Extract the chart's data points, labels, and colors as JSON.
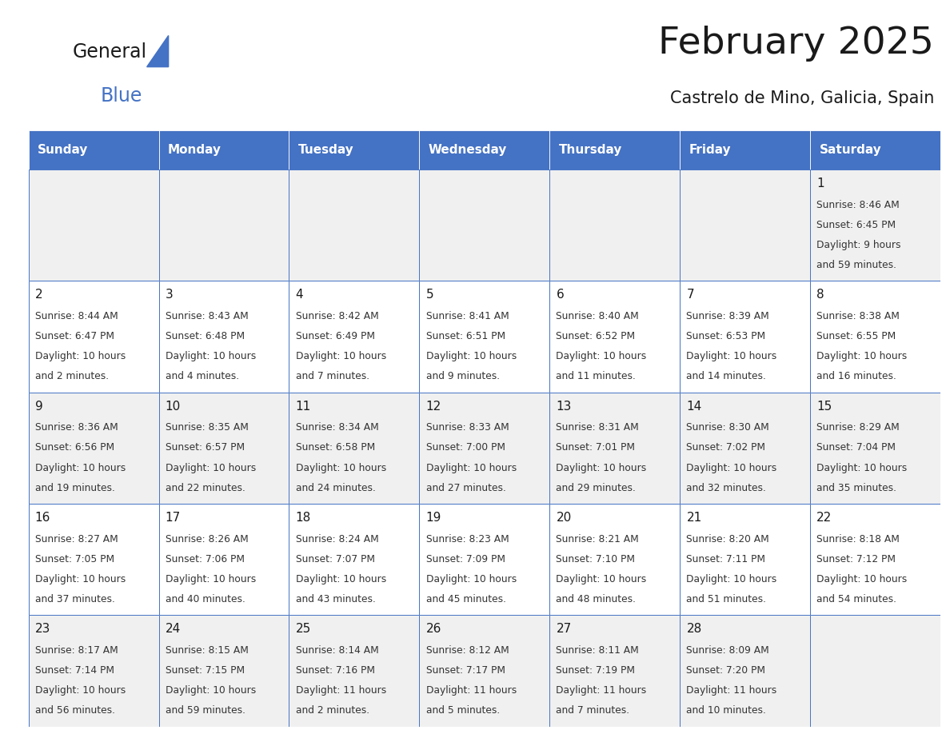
{
  "title": "February 2025",
  "subtitle": "Castrelo de Mino, Galicia, Spain",
  "header_bg": "#4472C4",
  "header_text_color": "#FFFFFF",
  "days_of_week": [
    "Sunday",
    "Monday",
    "Tuesday",
    "Wednesday",
    "Thursday",
    "Friday",
    "Saturday"
  ],
  "cell_bg_even": "#F0F0F0",
  "cell_bg_odd": "#FFFFFF",
  "cell_text_color": "#333333",
  "day_num_color": "#1a1a1a",
  "border_color": "#4472C4",
  "calendar_data": [
    [
      null,
      null,
      null,
      null,
      null,
      null,
      {
        "day": 1,
        "sunrise": "8:46 AM",
        "sunset": "6:45 PM",
        "daylight_line1": "Daylight: 9 hours",
        "daylight_line2": "and 59 minutes."
      }
    ],
    [
      {
        "day": 2,
        "sunrise": "8:44 AM",
        "sunset": "6:47 PM",
        "daylight_line1": "Daylight: 10 hours",
        "daylight_line2": "and 2 minutes."
      },
      {
        "day": 3,
        "sunrise": "8:43 AM",
        "sunset": "6:48 PM",
        "daylight_line1": "Daylight: 10 hours",
        "daylight_line2": "and 4 minutes."
      },
      {
        "day": 4,
        "sunrise": "8:42 AM",
        "sunset": "6:49 PM",
        "daylight_line1": "Daylight: 10 hours",
        "daylight_line2": "and 7 minutes."
      },
      {
        "day": 5,
        "sunrise": "8:41 AM",
        "sunset": "6:51 PM",
        "daylight_line1": "Daylight: 10 hours",
        "daylight_line2": "and 9 minutes."
      },
      {
        "day": 6,
        "sunrise": "8:40 AM",
        "sunset": "6:52 PM",
        "daylight_line1": "Daylight: 10 hours",
        "daylight_line2": "and 11 minutes."
      },
      {
        "day": 7,
        "sunrise": "8:39 AM",
        "sunset": "6:53 PM",
        "daylight_line1": "Daylight: 10 hours",
        "daylight_line2": "and 14 minutes."
      },
      {
        "day": 8,
        "sunrise": "8:38 AM",
        "sunset": "6:55 PM",
        "daylight_line1": "Daylight: 10 hours",
        "daylight_line2": "and 16 minutes."
      }
    ],
    [
      {
        "day": 9,
        "sunrise": "8:36 AM",
        "sunset": "6:56 PM",
        "daylight_line1": "Daylight: 10 hours",
        "daylight_line2": "and 19 minutes."
      },
      {
        "day": 10,
        "sunrise": "8:35 AM",
        "sunset": "6:57 PM",
        "daylight_line1": "Daylight: 10 hours",
        "daylight_line2": "and 22 minutes."
      },
      {
        "day": 11,
        "sunrise": "8:34 AM",
        "sunset": "6:58 PM",
        "daylight_line1": "Daylight: 10 hours",
        "daylight_line2": "and 24 minutes."
      },
      {
        "day": 12,
        "sunrise": "8:33 AM",
        "sunset": "7:00 PM",
        "daylight_line1": "Daylight: 10 hours",
        "daylight_line2": "and 27 minutes."
      },
      {
        "day": 13,
        "sunrise": "8:31 AM",
        "sunset": "7:01 PM",
        "daylight_line1": "Daylight: 10 hours",
        "daylight_line2": "and 29 minutes."
      },
      {
        "day": 14,
        "sunrise": "8:30 AM",
        "sunset": "7:02 PM",
        "daylight_line1": "Daylight: 10 hours",
        "daylight_line2": "and 32 minutes."
      },
      {
        "day": 15,
        "sunrise": "8:29 AM",
        "sunset": "7:04 PM",
        "daylight_line1": "Daylight: 10 hours",
        "daylight_line2": "and 35 minutes."
      }
    ],
    [
      {
        "day": 16,
        "sunrise": "8:27 AM",
        "sunset": "7:05 PM",
        "daylight_line1": "Daylight: 10 hours",
        "daylight_line2": "and 37 minutes."
      },
      {
        "day": 17,
        "sunrise": "8:26 AM",
        "sunset": "7:06 PM",
        "daylight_line1": "Daylight: 10 hours",
        "daylight_line2": "and 40 minutes."
      },
      {
        "day": 18,
        "sunrise": "8:24 AM",
        "sunset": "7:07 PM",
        "daylight_line1": "Daylight: 10 hours",
        "daylight_line2": "and 43 minutes."
      },
      {
        "day": 19,
        "sunrise": "8:23 AM",
        "sunset": "7:09 PM",
        "daylight_line1": "Daylight: 10 hours",
        "daylight_line2": "and 45 minutes."
      },
      {
        "day": 20,
        "sunrise": "8:21 AM",
        "sunset": "7:10 PM",
        "daylight_line1": "Daylight: 10 hours",
        "daylight_line2": "and 48 minutes."
      },
      {
        "day": 21,
        "sunrise": "8:20 AM",
        "sunset": "7:11 PM",
        "daylight_line1": "Daylight: 10 hours",
        "daylight_line2": "and 51 minutes."
      },
      {
        "day": 22,
        "sunrise": "8:18 AM",
        "sunset": "7:12 PM",
        "daylight_line1": "Daylight: 10 hours",
        "daylight_line2": "and 54 minutes."
      }
    ],
    [
      {
        "day": 23,
        "sunrise": "8:17 AM",
        "sunset": "7:14 PM",
        "daylight_line1": "Daylight: 10 hours",
        "daylight_line2": "and 56 minutes."
      },
      {
        "day": 24,
        "sunrise": "8:15 AM",
        "sunset": "7:15 PM",
        "daylight_line1": "Daylight: 10 hours",
        "daylight_line2": "and 59 minutes."
      },
      {
        "day": 25,
        "sunrise": "8:14 AM",
        "sunset": "7:16 PM",
        "daylight_line1": "Daylight: 11 hours",
        "daylight_line2": "and 2 minutes."
      },
      {
        "day": 26,
        "sunrise": "8:12 AM",
        "sunset": "7:17 PM",
        "daylight_line1": "Daylight: 11 hours",
        "daylight_line2": "and 5 minutes."
      },
      {
        "day": 27,
        "sunrise": "8:11 AM",
        "sunset": "7:19 PM",
        "daylight_line1": "Daylight: 11 hours",
        "daylight_line2": "and 7 minutes."
      },
      {
        "day": 28,
        "sunrise": "8:09 AM",
        "sunset": "7:20 PM",
        "daylight_line1": "Daylight: 11 hours",
        "daylight_line2": "and 10 minutes."
      },
      null
    ]
  ]
}
